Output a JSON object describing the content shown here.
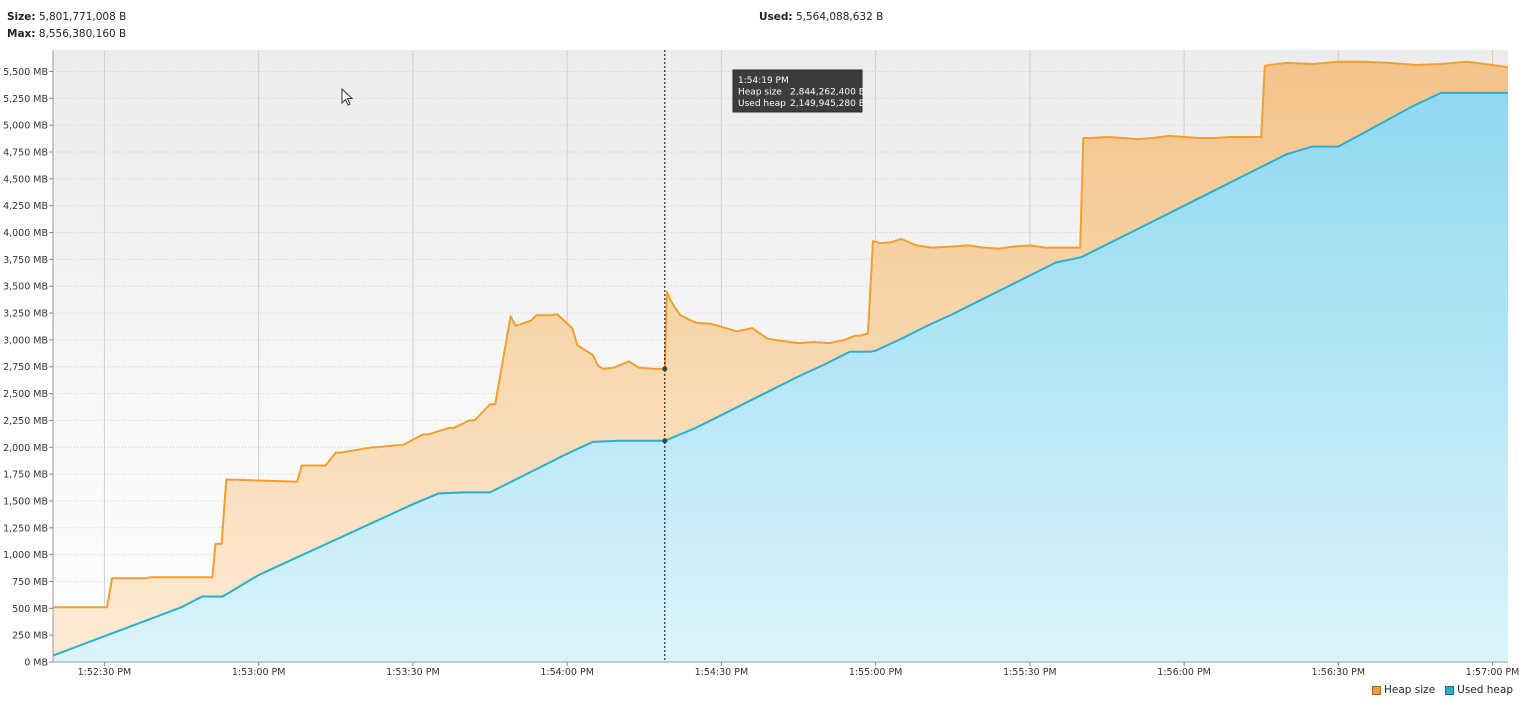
{
  "header": {
    "size_label": "Size:",
    "size_value": "5,801,771,008 B",
    "max_label": "Max:",
    "max_value": "8,556,380,160 B",
    "used_label": "Used:",
    "used_value": "5,564,088,632 B"
  },
  "tooltip": {
    "time": "1:54:19 PM",
    "heap_label": "Heap size",
    "heap_value": "2,844,262,400 B",
    "used_label": "Used heap",
    "used_value": "2,149,945,280 B"
  },
  "colors": {
    "heap_line": "#f0a030",
    "heap_fill": "#f7cf9c",
    "used_line": "#2aaed0",
    "used_fill": "#b3e6f5",
    "grid": "#cfcfcf",
    "cursor_line": "#000000",
    "tooltip_bg": "#3c3c3c"
  },
  "legend": [
    {
      "label": "Heap size",
      "color": "#f0a030"
    },
    {
      "label": "Used heap",
      "color": "#2aaed0"
    }
  ],
  "chart_data": {
    "type": "area",
    "xlabel": "",
    "ylabel": "",
    "x_unit": "seconds after 1:52:20 PM",
    "xlim": [
      0,
      283
    ],
    "ylim": [
      0,
      5700
    ],
    "y_ticks": [
      0,
      250,
      500,
      750,
      1000,
      1250,
      1500,
      1750,
      2000,
      2250,
      2500,
      2750,
      3000,
      3250,
      3500,
      3750,
      4000,
      4250,
      4500,
      4750,
      5000,
      5250,
      5500
    ],
    "y_tick_labels": [
      "0 MB",
      "250 MB",
      "500 MB",
      "750 MB",
      "1,000 MB",
      "1,250 MB",
      "1,500 MB",
      "1,750 MB",
      "2,000 MB",
      "2,250 MB",
      "2,500 MB",
      "2,750 MB",
      "3,000 MB",
      "3,250 MB",
      "3,500 MB",
      "3,750 MB",
      "4,000 MB",
      "4,250 MB",
      "4,500 MB",
      "4,750 MB",
      "5,000 MB",
      "5,250 MB",
      "5,500 MB"
    ],
    "x_ticks": [
      10,
      40,
      70,
      100,
      130,
      160,
      190,
      220,
      250,
      280
    ],
    "x_tick_labels": [
      "1:52:30 PM",
      "1:53:00 PM",
      "1:53:30 PM",
      "1:54:00 PM",
      "1:54:30 PM",
      "1:55:00 PM",
      "1:55:30 PM",
      "1:56:00 PM",
      "1:56:30 PM",
      "1:57:00 PM"
    ],
    "grid": true,
    "legend_position": "bottom-right",
    "cursor_x": 119,
    "series": [
      {
        "name": "Heap size",
        "x": [
          0,
          10.5,
          11.5,
          18,
          19,
          31,
          31.6,
          32.8,
          33.7,
          34,
          47,
          47.5,
          48.4,
          49,
          53,
          55,
          56,
          62,
          63,
          67,
          68,
          72,
          73,
          77,
          78,
          81,
          82,
          85,
          86,
          89,
          90,
          93,
          94,
          97,
          98,
          101,
          102,
          105,
          106,
          107,
          109,
          112,
          114,
          117,
          119,
          119.4,
          120,
          121,
          122,
          125,
          128,
          133,
          136,
          139,
          142,
          145,
          148,
          151,
          154,
          156,
          157,
          158.5,
          159.5,
          161,
          163,
          165,
          168,
          171,
          175,
          178,
          181,
          184,
          187,
          190,
          193,
          196,
          198,
          199.8,
          200.4,
          202,
          205,
          208,
          211,
          214,
          217,
          220,
          223,
          226,
          229,
          232,
          234,
          235,
          235.7,
          236.5,
          240,
          245,
          250,
          255,
          260,
          265,
          270,
          275,
          280,
          283
        ],
        "values": [
          510,
          510,
          780,
          780,
          790,
          790,
          1100,
          1100,
          1700,
          1700,
          1680,
          1680,
          1830,
          1830,
          1830,
          1950,
          1950,
          2000,
          2000,
          2020,
          2020,
          2120,
          2120,
          2180,
          2180,
          2250,
          2250,
          2400,
          2400,
          3220,
          3130,
          3180,
          3230,
          3230,
          3240,
          3110,
          2950,
          2860,
          2760,
          2730,
          2740,
          2800,
          2740,
          2730,
          2730,
          3450,
          3380,
          3300,
          3230,
          3160,
          3150,
          3080,
          3110,
          3010,
          2990,
          2970,
          2980,
          2970,
          3000,
          3040,
          3040,
          3060,
          3920,
          3900,
          3910,
          3940,
          3880,
          3860,
          3870,
          3880,
          3860,
          3850,
          3870,
          3880,
          3860,
          3860,
          3860,
          3860,
          4880,
          4880,
          4890,
          4880,
          4870,
          4880,
          4900,
          4890,
          4880,
          4880,
          4890,
          4890,
          4890,
          4890,
          5550,
          5560,
          5580,
          5570,
          5590,
          5590,
          5580,
          5560,
          5570,
          5590,
          5560,
          5540
        ]
      },
      {
        "name": "Used heap",
        "x": [
          0,
          5,
          10,
          15,
          20,
          25,
          29,
          30,
          33,
          40,
          45,
          50,
          55,
          60,
          65,
          70,
          75,
          80,
          84,
          85,
          90,
          95,
          100,
          105,
          110,
          115,
          119,
          125,
          130,
          135,
          140,
          145,
          150,
          155,
          159,
          160,
          165,
          170,
          175,
          180,
          185,
          190,
          195,
          200,
          205,
          210,
          215,
          220,
          225,
          230,
          235,
          240,
          245,
          250,
          255,
          260,
          265,
          270,
          275,
          280,
          283
        ],
        "values": [
          60,
          150,
          240,
          330,
          420,
          510,
          610,
          610,
          610,
          810,
          920,
          1030,
          1140,
          1250,
          1360,
          1470,
          1570,
          1580,
          1580,
          1580,
          1700,
          1820,
          1940,
          2050,
          2060,
          2060,
          2060,
          2180,
          2300,
          2420,
          2540,
          2660,
          2770,
          2890,
          2890,
          2900,
          3010,
          3130,
          3240,
          3360,
          3480,
          3600,
          3720,
          3770,
          3890,
          4010,
          4130,
          4250,
          4370,
          4490,
          4610,
          4730,
          4800,
          4800,
          4930,
          5060,
          5190,
          5300,
          5300,
          5300,
          5300
        ]
      }
    ]
  }
}
